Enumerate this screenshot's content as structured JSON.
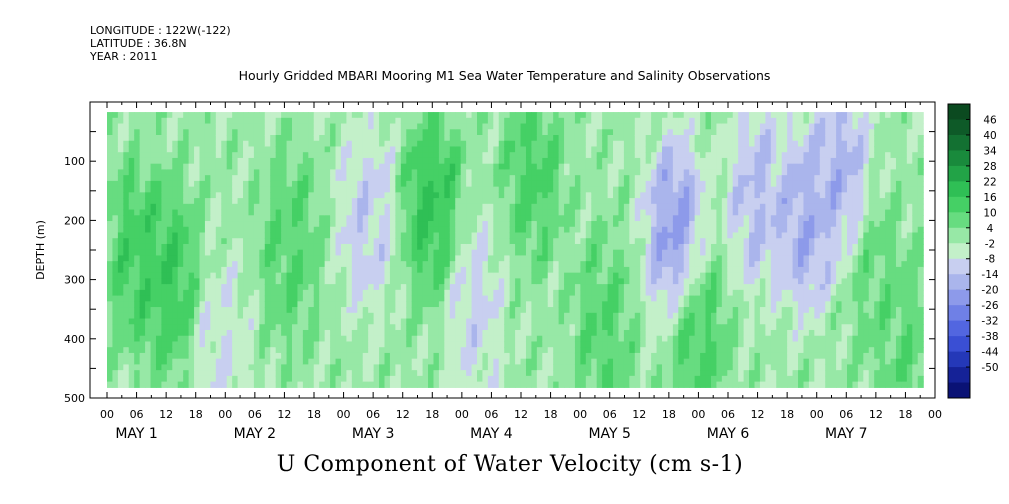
{
  "header": {
    "longitude": "LONGITUDE : 122W(-122)",
    "latitude": "LATITUDE : 36.8N",
    "year": "YEAR : 2011"
  },
  "chart_data": {
    "type": "heatmap",
    "title": "Hourly Gridded MBARI Mooring M1 Sea Water Temperature and Salinity Observations",
    "xlabel": "U Component of Water Velocity (cm s-1)",
    "ylabel": "DEPTH (m)",
    "x_hour_labels": [
      "00",
      "06",
      "12",
      "18"
    ],
    "x_day_labels": [
      "MAY  1",
      "MAY  2",
      "MAY  3",
      "MAY  4",
      "MAY  5",
      "MAY  6",
      "MAY  7"
    ],
    "x_range_days": [
      0,
      7
    ],
    "y_ticks": [
      100,
      200,
      300,
      400,
      500
    ],
    "ylim": [
      500,
      0
    ],
    "data_depth_range": [
      17,
      482
    ],
    "colorbar": {
      "levels": [
        46,
        40,
        34,
        28,
        22,
        16,
        10,
        4,
        -2,
        -8,
        -14,
        -20,
        -26,
        -32,
        -38,
        -44,
        -50
      ],
      "colors_high_to_low": [
        "#0b4a20",
        "#0e5a28",
        "#137132",
        "#198a3c",
        "#22a347",
        "#2fbf55",
        "#45d065",
        "#67dc80",
        "#97e8a6",
        "#c3f0c9",
        "#c8cff0",
        "#aab5ec",
        "#8d9aea",
        "#6f80e6",
        "#5266e0",
        "#3a4fd4",
        "#2438b8",
        "#152297",
        "#0a1275"
      ]
    },
    "hotspots": [
      {
        "day": 0.25,
        "depth": 260,
        "value": 16
      },
      {
        "day": 0.55,
        "depth": 300,
        "value": 18
      },
      {
        "day": 0.95,
        "depth": 420,
        "value": -10
      },
      {
        "day": 1.55,
        "depth": 250,
        "value": 12
      },
      {
        "day": 2.2,
        "depth": 200,
        "value": -14
      },
      {
        "day": 2.75,
        "depth": 180,
        "value": 20
      },
      {
        "day": 3.1,
        "depth": 350,
        "value": -12
      },
      {
        "day": 3.6,
        "depth": 120,
        "value": 14
      },
      {
        "day": 4.2,
        "depth": 380,
        "value": 12
      },
      {
        "day": 4.8,
        "depth": 220,
        "value": -26
      },
      {
        "day": 5.0,
        "depth": 400,
        "value": 14
      },
      {
        "day": 5.5,
        "depth": 160,
        "value": -18
      },
      {
        "day": 5.9,
        "depth": 200,
        "value": -22
      },
      {
        "day": 6.2,
        "depth": 120,
        "value": -20
      },
      {
        "day": 6.5,
        "depth": 300,
        "value": 8
      },
      {
        "day": 6.8,
        "depth": 420,
        "value": 10
      }
    ]
  }
}
